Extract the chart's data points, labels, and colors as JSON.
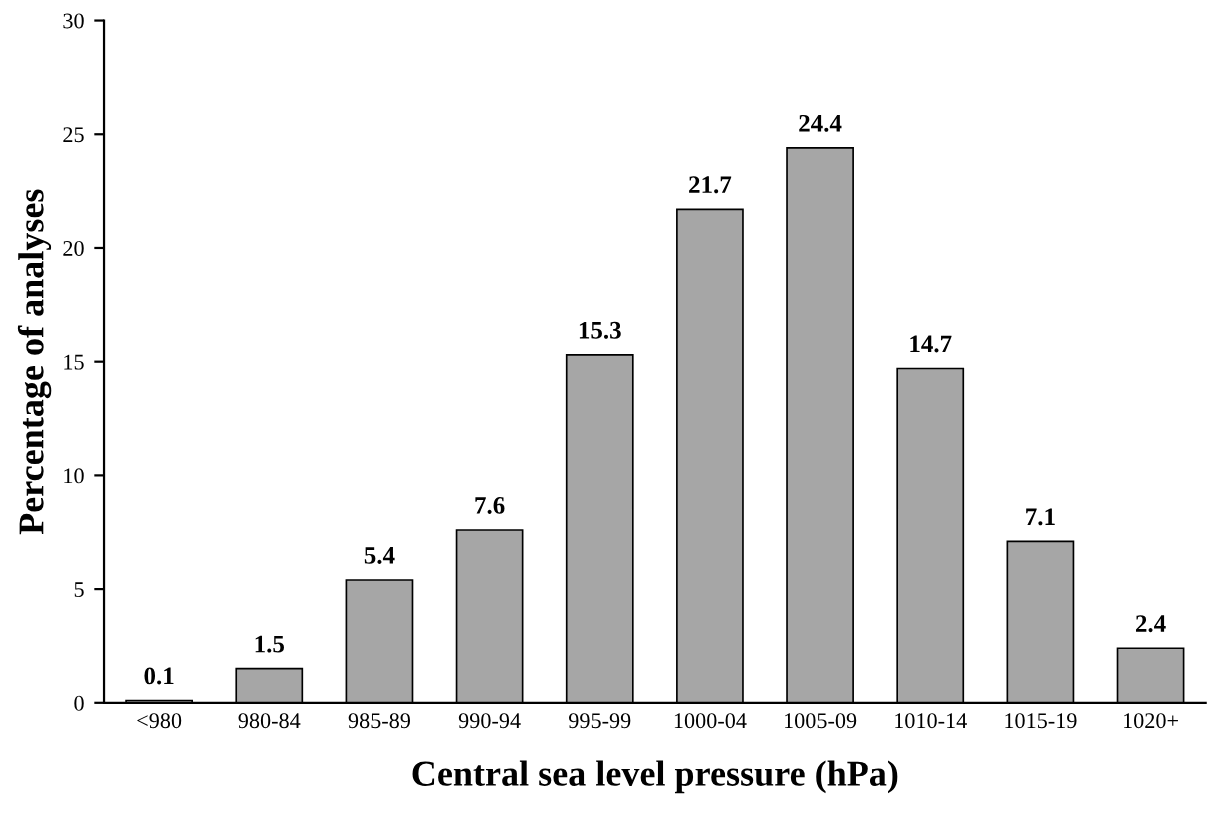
{
  "chart_data": {
    "type": "bar",
    "xlabel": "Central sea level pressure (hPa)",
    "ylabel": "Percentage of analyses",
    "categories": [
      "<980",
      "980-84",
      "985-89",
      "990-94",
      "995-99",
      "1000-04",
      "1005-09",
      "1010-14",
      "1015-19",
      "1020+"
    ],
    "values": [
      0.1,
      1.5,
      5.4,
      7.6,
      15.3,
      21.7,
      24.4,
      14.7,
      7.1,
      2.4
    ],
    "color": "#a6a6a6",
    "ylim": [
      0,
      30
    ],
    "yticks": [
      0,
      5,
      10,
      15,
      20,
      25,
      30
    ],
    "data_labels": true,
    "grid": false,
    "legend": false
  }
}
